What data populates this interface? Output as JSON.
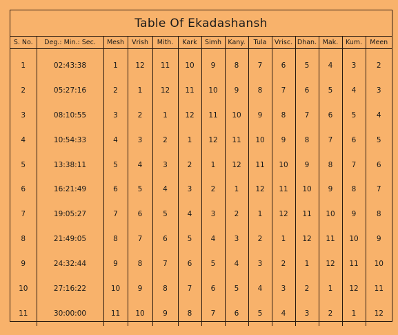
{
  "title": "Table Of Ekadashansh",
  "columns": [
    "S. No.",
    "Deg.: Min.: Sec.",
    "Mesh",
    "Vrish",
    "Mith.",
    "Kark",
    "Simh",
    "Kany.",
    "Tula",
    "Vrisc.",
    "Dhan.",
    "Mak.",
    "Kum.",
    "Meen"
  ],
  "rows": [
    [
      "1",
      "02:43:38",
      "1",
      "12",
      "11",
      "10",
      "9",
      "8",
      "7",
      "6",
      "5",
      "4",
      "3",
      "2"
    ],
    [
      "2",
      "05:27:16",
      "2",
      "1",
      "12",
      "11",
      "10",
      "9",
      "8",
      "7",
      "6",
      "5",
      "4",
      "3"
    ],
    [
      "3",
      "08:10:55",
      "3",
      "2",
      "1",
      "12",
      "11",
      "10",
      "9",
      "8",
      "7",
      "6",
      "5",
      "4"
    ],
    [
      "4",
      "10:54:33",
      "4",
      "3",
      "2",
      "1",
      "12",
      "11",
      "10",
      "9",
      "8",
      "7",
      "6",
      "5"
    ],
    [
      "5",
      "13:38:11",
      "5",
      "4",
      "3",
      "2",
      "1",
      "12",
      "11",
      "10",
      "9",
      "8",
      "7",
      "6"
    ],
    [
      "6",
      "16:21:49",
      "6",
      "5",
      "4",
      "3",
      "2",
      "1",
      "12",
      "11",
      "10",
      "9",
      "8",
      "7"
    ],
    [
      "7",
      "19:05:27",
      "7",
      "6",
      "5",
      "4",
      "3",
      "2",
      "1",
      "12",
      "11",
      "10",
      "9",
      "8"
    ],
    [
      "8",
      "21:49:05",
      "8",
      "7",
      "6",
      "5",
      "4",
      "3",
      "2",
      "1",
      "12",
      "11",
      "10",
      "9"
    ],
    [
      "9",
      "24:32:44",
      "9",
      "8",
      "7",
      "6",
      "5",
      "4",
      "3",
      "2",
      "1",
      "12",
      "11",
      "10"
    ],
    [
      "10",
      "27:16:22",
      "10",
      "9",
      "8",
      "7",
      "6",
      "5",
      "4",
      "3",
      "2",
      "1",
      "12",
      "11"
    ],
    [
      "11",
      "30:00:00",
      "11",
      "10",
      "9",
      "8",
      "7",
      "6",
      "5",
      "4",
      "3",
      "2",
      "1",
      "12"
    ]
  ]
}
